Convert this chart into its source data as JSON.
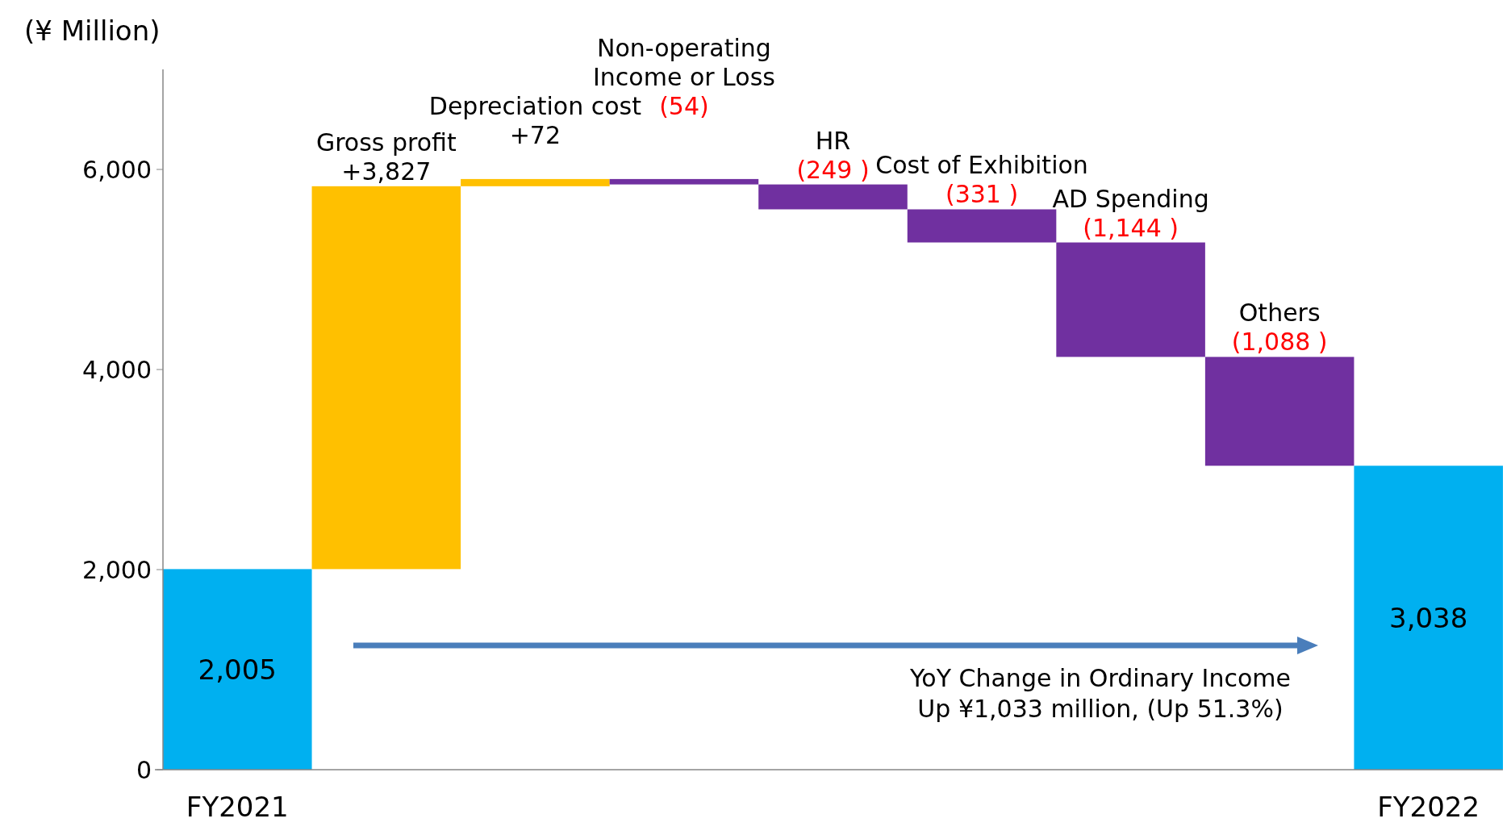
{
  "chart_data": {
    "type": "bar",
    "ylabel": "(¥ Million)",
    "categories": [
      "FY2021",
      "Gross profit",
      "Depreciation cost",
      "Non-operating\nIncome or Loss",
      "HR",
      "Cost of Exhibition",
      "AD Spending",
      "Others",
      "FY2022"
    ],
    "values": [
      2005,
      3827,
      72,
      -54,
      -249,
      -331,
      -1144,
      -1088,
      3038
    ],
    "base": [
      0,
      2005,
      5832,
      5904,
      5850,
      5601,
      5270,
      4126,
      0
    ],
    "colors": [
      "#00b0f0",
      "#ffc000",
      "#ffc000",
      "#7030a0",
      "#7030a0",
      "#7030a0",
      "#7030a0",
      "#7030a0",
      "#00b0f0"
    ],
    "value_labels": [
      "2,005",
      "+3,827",
      "+72",
      "(54)",
      "(249 )",
      "(331 )",
      "(1,144 )",
      "(1,088 )",
      "3,038"
    ],
    "ylim": [
      0,
      7000
    ],
    "yticks": [
      0,
      {
        "value": 2000,
        "label": "2,000"
      },
      {
        "value": 4000,
        "label": "4,000"
      },
      {
        "value": 6000,
        "label": "6,000"
      }
    ],
    "grid": false,
    "annotations": [
      "YoY Change in Ordinary Income\nUp ¥1,033 million, (Up 51.3%)"
    ]
  }
}
